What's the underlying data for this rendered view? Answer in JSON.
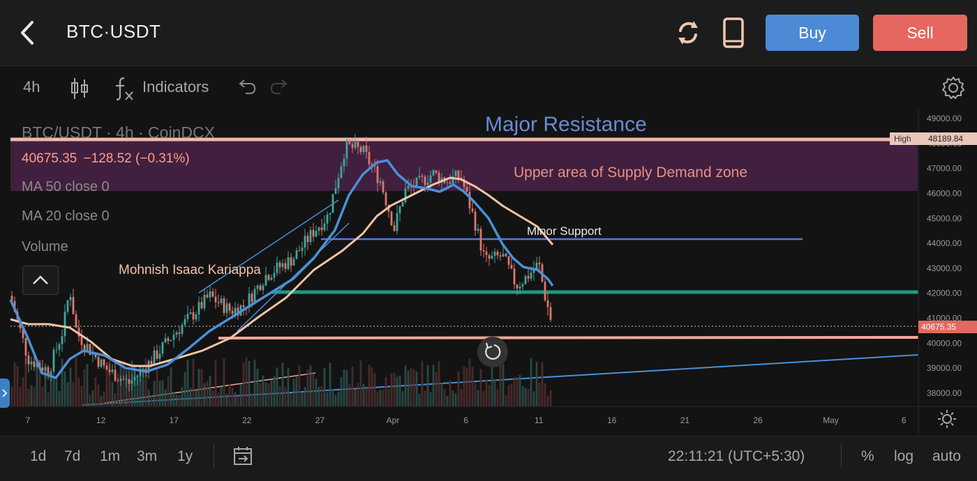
{
  "header": {
    "title": "BTC·USDT",
    "buy_label": "Buy",
    "sell_label": "Sell",
    "icons": [
      "back-arrow-icon",
      "refresh-icon",
      "mobile-device-icon"
    ]
  },
  "toolbar": {
    "timeframe": "4h",
    "indicators_label": "Indicators",
    "icons": [
      "candlestick-icon",
      "fx-icon",
      "undo-icon",
      "redo-icon",
      "settings-gear-icon"
    ]
  },
  "legend": {
    "symbol": "BTC/USDT · 4h · CoinDCX",
    "price": "40675.35",
    "change": "−128.52 (−0.31%)",
    "ma50": "MA 50 close 0",
    "ma20": "MA 20 close 0",
    "volume": "Volume"
  },
  "annotations": {
    "major_resistance": "Major Resistance",
    "supply_zone": "Upper area of Supply Demand zone",
    "minor_support": "Minor Support",
    "author": "Mohnish Isaac Kariappa"
  },
  "price_labels": {
    "high_tag": "High",
    "high_value": "48189.84",
    "last_value": "40675.35"
  },
  "bottom_bar": {
    "ranges": [
      "1d",
      "7d",
      "1m",
      "3m",
      "1y"
    ],
    "clock": "22:11:21 (UTC+5:30)",
    "percent": "%",
    "log": "log",
    "auto": "auto"
  },
  "colors": {
    "buy": "#4c8ad6",
    "sell": "#e6675f",
    "ma_blue": "#4a90d9",
    "ma_peach": "#f3c4a6",
    "up": "#3fa79b",
    "down": "#e0756c",
    "zone": "#4a2246",
    "teal_line": "#1d9a86"
  },
  "chart_data": {
    "type": "candlestick",
    "yticks": [
      "49000.00",
      "48000.00",
      "47000.00",
      "46000.00",
      "45000.00",
      "44000.00",
      "43000.00",
      "42000.00",
      "41000.00",
      "40000.00",
      "39000.00",
      "38000.00"
    ],
    "xticks": [
      "7",
      "12",
      "17",
      "22",
      "27",
      "Apr",
      "6",
      "11",
      "16",
      "21",
      "26",
      "May",
      "6"
    ],
    "levels": {
      "major_resistance": 48189.84,
      "supply_zone": [
        46100,
        48189.84
      ],
      "minor_support": 44200,
      "teal_support": 42050,
      "lower_support": 40250,
      "last_price": 40675.35
    }
  }
}
